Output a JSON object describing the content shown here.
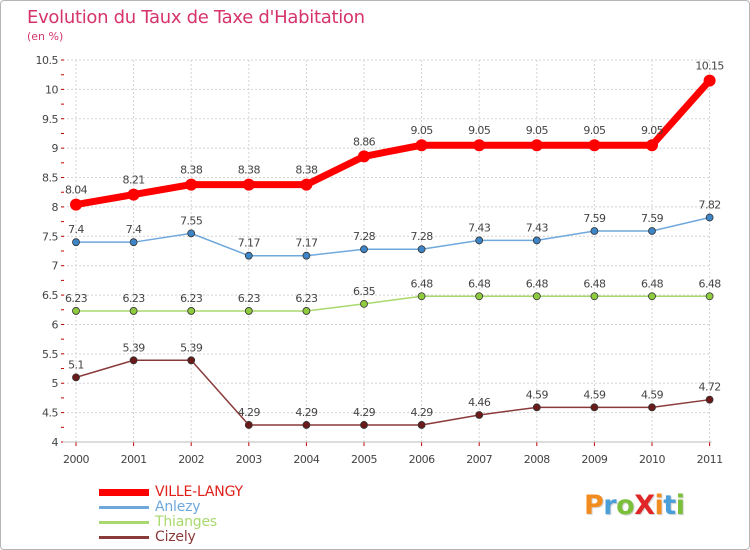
{
  "title": "Evolution du Taux de Taxe d'Habitation",
  "unit_label": "(en %)",
  "colors": {
    "title": "#d6336c",
    "grid": "#d4d4d4",
    "axis_tick": "#c00000"
  },
  "logo": {
    "text": "Proxiti",
    "letters": [
      {
        "ch": "P",
        "color": "#f28c1e"
      },
      {
        "ch": "r",
        "color": "#4a9fd8"
      },
      {
        "ch": "o",
        "color": "#7bbf3a"
      },
      {
        "ch": "X",
        "color": "#e02626"
      },
      {
        "ch": "i",
        "color": "#f28c1e"
      },
      {
        "ch": "t",
        "color": "#4a9fd8"
      },
      {
        "ch": "i",
        "color": "#7bbf3a"
      }
    ]
  },
  "chart_data": {
    "type": "line",
    "title": "Evolution du Taux de Taxe d'Habitation",
    "ylabel": "(en %)",
    "xlabel": "",
    "categories": [
      "2000",
      "2001",
      "2002",
      "2003",
      "2004",
      "2005",
      "2006",
      "2007",
      "2008",
      "2009",
      "2010",
      "2011"
    ],
    "ylim": [
      4,
      10.5
    ],
    "yticks": [
      "4",
      "4.5",
      "5",
      "5.5",
      "6",
      "6.5",
      "7",
      "7.5",
      "8",
      "8.5",
      "9",
      "9.5",
      "10",
      "10.5"
    ],
    "grid": true,
    "legend_position": "bottom-left",
    "series": [
      {
        "name": "VILLE-LANGY",
        "color": "#ff0000",
        "marker": "#ff0000",
        "weight": "heavy",
        "values": [
          8.04,
          8.21,
          8.38,
          8.38,
          8.38,
          8.86,
          9.05,
          9.05,
          9.05,
          9.05,
          9.05,
          10.15
        ],
        "labels": [
          "8.04",
          "8.21",
          "8.38",
          "8.38",
          "8.38",
          "8.86",
          "9.05",
          "9.05",
          "9.05",
          "9.05",
          "9.05",
          "10.15"
        ]
      },
      {
        "name": "Anlezy",
        "color": "#6fa8dc",
        "marker": "#3d85c6",
        "weight": "thin",
        "values": [
          7.4,
          7.4,
          7.55,
          7.17,
          7.17,
          7.28,
          7.28,
          7.43,
          7.43,
          7.59,
          7.59,
          7.82
        ],
        "labels": [
          "7.4",
          "7.4",
          "7.55",
          "7.17",
          "7.17",
          "7.28",
          "7.28",
          "7.43",
          "7.43",
          "7.59",
          "7.59",
          "7.82"
        ]
      },
      {
        "name": "Thianges",
        "color": "#a9d96e",
        "marker": "#8fcb3f",
        "weight": "thin",
        "values": [
          6.23,
          6.23,
          6.23,
          6.23,
          6.23,
          6.35,
          6.48,
          6.48,
          6.48,
          6.48,
          6.48,
          6.48
        ],
        "labels": [
          "6.23",
          "6.23",
          "6.23",
          "6.23",
          "6.23",
          "6.35",
          "6.48",
          "6.48",
          "6.48",
          "6.48",
          "6.48",
          "6.48"
        ]
      },
      {
        "name": "Cizely",
        "color": "#8b3a3a",
        "marker": "#6b1a1a",
        "weight": "thin",
        "values": [
          5.1,
          5.39,
          5.39,
          4.29,
          4.29,
          4.29,
          4.29,
          4.46,
          4.59,
          4.59,
          4.59,
          4.72
        ],
        "labels": [
          "5.1",
          "5.39",
          "5.39",
          "4.29",
          "4.29",
          "4.29",
          "4.29",
          "4.46",
          "4.59",
          "4.59",
          "4.59",
          "4.72"
        ]
      }
    ]
  }
}
